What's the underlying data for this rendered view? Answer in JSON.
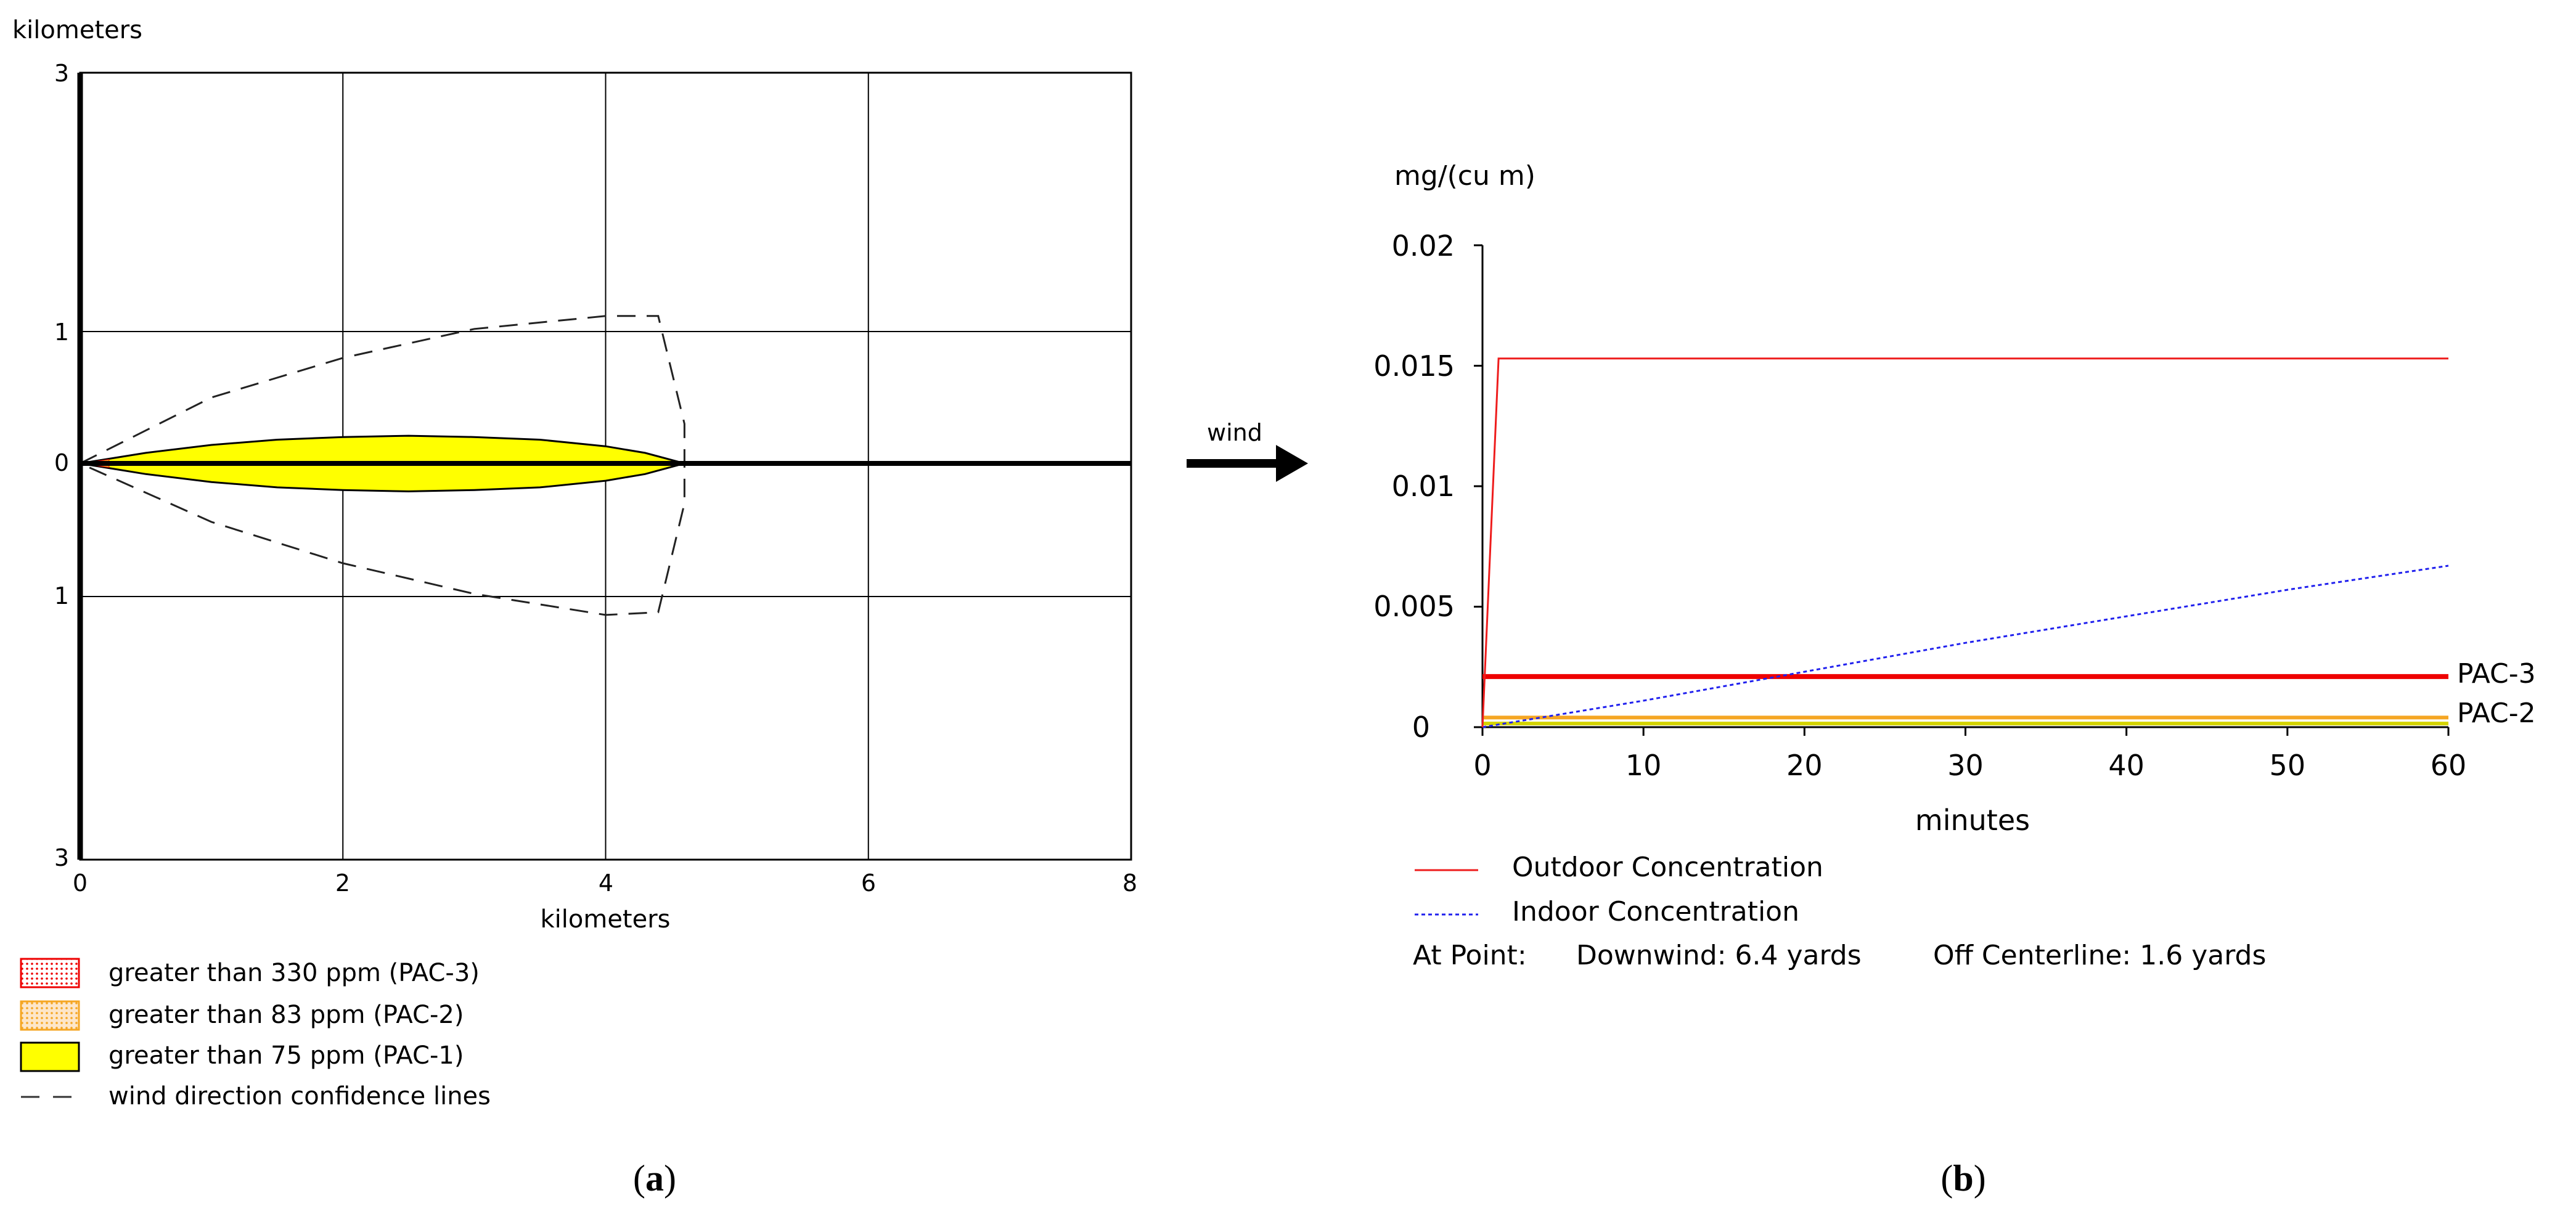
{
  "panel_a": {
    "y_axis_title": "kilometers",
    "x_axis_title": "kilometers",
    "y_tick_labels": [
      "3",
      "1",
      "0",
      "1",
      "3"
    ],
    "x_tick_labels": [
      "0",
      "2",
      "4",
      "6",
      "8"
    ],
    "legend": [
      {
        "label": "greater than 330 ppm (PAC-3)",
        "swatch": "dotted-red"
      },
      {
        "label": "greater than 83 ppm (PAC-2)",
        "swatch": "dotted-orange"
      },
      {
        "label": "greater than 75 ppm (PAC-1)",
        "swatch": "solid-yellow"
      },
      {
        "label": "wind direction confidence lines",
        "swatch": "dashed-line"
      }
    ],
    "caption_pre": "(",
    "caption_letter": "a",
    "caption_post": ")"
  },
  "wind": {
    "label": "wind"
  },
  "panel_b": {
    "y_unit": "mg/(cu m)",
    "x_axis_title": "minutes",
    "legend_outdoor": "Outdoor Concentration",
    "legend_indoor": "Indoor Concentration",
    "at_point_label": "At Point:",
    "downwind": "Downwind: 6.4 yards",
    "off_centerline": "Off Centerline: 1.6 yards",
    "pac3_label": "PAC-3",
    "pac2_label": "PAC-2",
    "caption_pre": "(",
    "caption_letter": "b",
    "caption_post": ")"
  },
  "colors": {
    "outdoor": "#ee1c1c",
    "indoor": "#2020ee",
    "pac3": "#ee0000",
    "pac2": "#f5a623",
    "pac1": "#ffff00",
    "grid": "#000000"
  },
  "chart_data": [
    {
      "type": "area",
      "title": "",
      "xlabel": "kilometers",
      "ylabel": "kilometers",
      "xlim": [
        0,
        8
      ],
      "ylim": [
        -3,
        3
      ],
      "x_ticks": [
        0,
        2,
        4,
        6,
        8
      ],
      "y_ticks": [
        3,
        1,
        0,
        -1,
        -3
      ],
      "grid": true,
      "legend_position": "below",
      "series": [
        {
          "name": "greater than 75 ppm (PAC-1)",
          "x": [
            0,
            0.5,
            1,
            1.5,
            2,
            2.5,
            3,
            3.5,
            4,
            4.3,
            4.6
          ],
          "y_upper": [
            0,
            0.08,
            0.14,
            0.18,
            0.2,
            0.21,
            0.2,
            0.18,
            0.13,
            0.08,
            0
          ],
          "y_lower": [
            0,
            -0.08,
            -0.14,
            -0.18,
            -0.2,
            -0.21,
            -0.2,
            -0.18,
            -0.13,
            -0.08,
            0
          ]
        },
        {
          "name": "wind direction confidence lines",
          "x": [
            0,
            1,
            2,
            3,
            4,
            4.4,
            4.6,
            4.6,
            4.4,
            4,
            3,
            2,
            1,
            0
          ],
          "y": [
            0,
            0.5,
            0.8,
            1.02,
            1.12,
            1.12,
            0.3,
            -0.3,
            -1.12,
            -1.14,
            -0.98,
            -0.75,
            -0.44,
            0
          ]
        },
        {
          "name": "centerline",
          "x": [
            0,
            8
          ],
          "y": [
            0,
            0
          ]
        }
      ]
    },
    {
      "type": "line",
      "title": "",
      "xlabel": "minutes",
      "ylabel": "mg/(cu m)",
      "xlim": [
        0,
        60
      ],
      "ylim": [
        0,
        0.02
      ],
      "x_ticks": [
        0,
        10,
        20,
        30,
        40,
        50,
        60
      ],
      "y_ticks": [
        0,
        0.005,
        0.01,
        0.015,
        0.02
      ],
      "y_tick_labels": [
        "0",
        "0.005",
        "0.01",
        "0.015",
        "0.02"
      ],
      "grid": false,
      "legend_position": "below",
      "series": [
        {
          "name": "Outdoor Concentration",
          "x": [
            0,
            1,
            60
          ],
          "values": [
            0,
            0.0153,
            0.0153
          ]
        },
        {
          "name": "Indoor Concentration",
          "x": [
            0,
            10,
            20,
            30,
            40,
            50,
            60
          ],
          "values": [
            0,
            0.0011,
            0.0023,
            0.0035,
            0.0046,
            0.0057,
            0.0067
          ]
        },
        {
          "name": "PAC-3",
          "x": [
            0,
            60
          ],
          "values": [
            0.0021,
            0.0021
          ]
        },
        {
          "name": "PAC-2",
          "x": [
            0,
            60
          ],
          "values": [
            0.0004,
            0.0004
          ]
        },
        {
          "name": "PAC-1",
          "x": [
            0,
            60
          ],
          "values": [
            0.00015,
            0.00015
          ]
        }
      ]
    }
  ]
}
